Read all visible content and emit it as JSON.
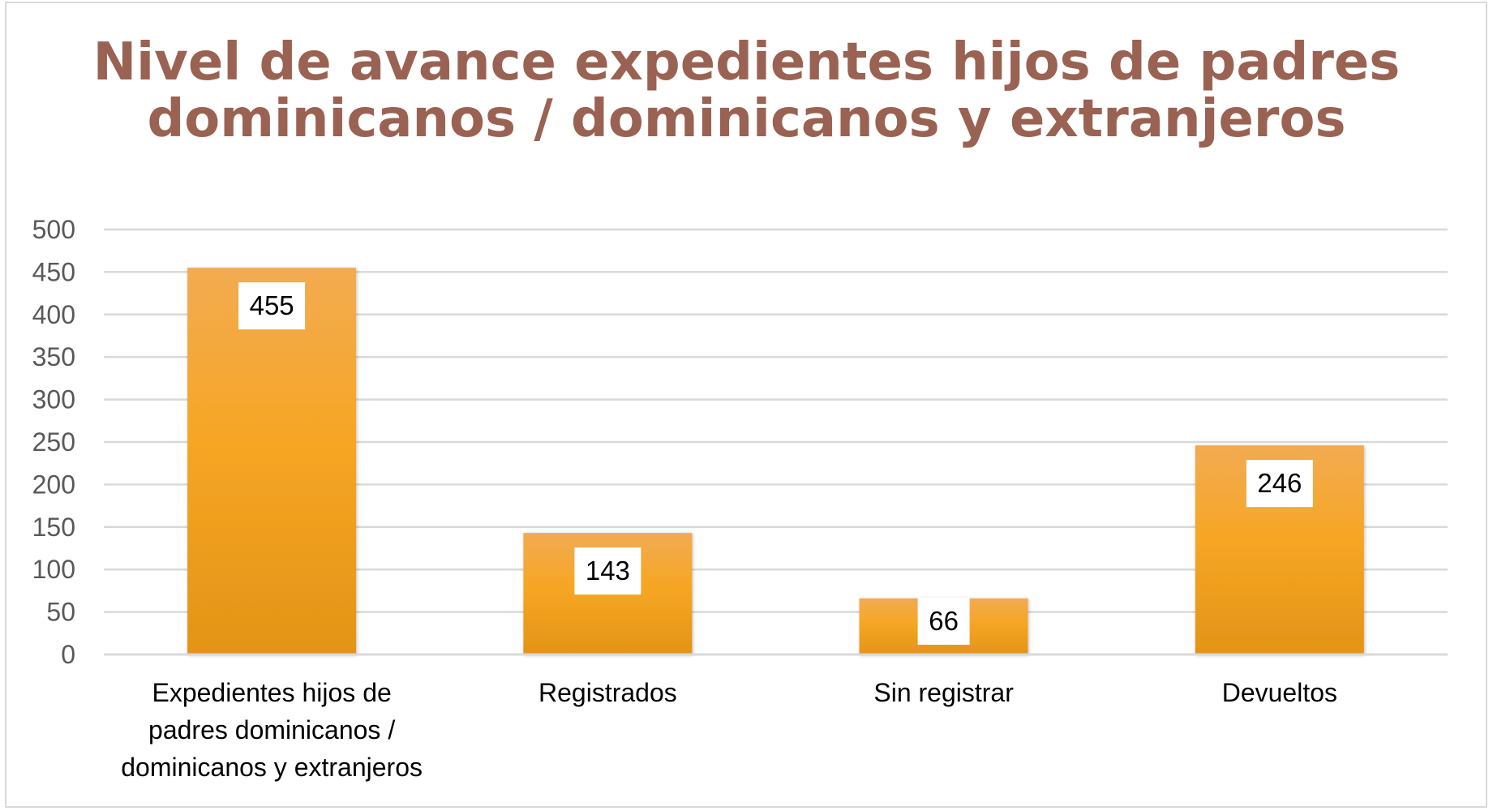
{
  "chart_data": {
    "type": "bar",
    "title_lines": [
      "Nivel de avance expedientes hijos de padres",
      "dominicanos / dominicanos y extranjeros"
    ],
    "categories": [
      [
        "Expedientes hijos de",
        "padres dominicanos /",
        "dominicanos y extranjeros"
      ],
      [
        "Registrados"
      ],
      [
        "Sin registrar"
      ],
      [
        "Devueltos"
      ]
    ],
    "values": [
      455,
      143,
      66,
      246
    ],
    "ylim": [
      0,
      500
    ],
    "yticks": [
      0,
      50,
      100,
      150,
      200,
      250,
      300,
      350,
      400,
      450,
      500
    ],
    "grid": true,
    "legend": "none",
    "data_labels": true,
    "colors": {
      "bar_top": "#f2ab52",
      "bar_mid": "#f6a623",
      "bar_bottom": "#e39417",
      "title": "#9a6252",
      "grid": "#d9d9d9",
      "axis": "#d9d9d9",
      "tick_text": "#595959",
      "frame": "#d9d9d9"
    }
  }
}
